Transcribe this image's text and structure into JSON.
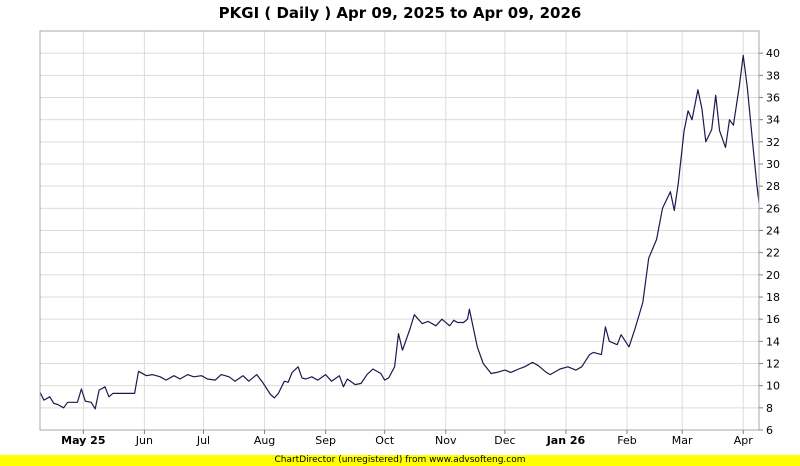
{
  "chart_data": {
    "type": "line",
    "title": "PKGI ( Daily ) Apr 09, 2025 to Apr 09, 2026",
    "xlabel": "",
    "ylabel": "",
    "x_range": [
      "2025-04-09",
      "2026-04-09"
    ],
    "ylim": [
      6,
      42
    ],
    "y_ticks": [
      6,
      8,
      10,
      12,
      14,
      16,
      18,
      20,
      22,
      24,
      26,
      28,
      30,
      32,
      34,
      36,
      38,
      40
    ],
    "y_axis_side": "right",
    "grid": true,
    "x_ticks": [
      {
        "label": "May 25",
        "date": "2025-05-01",
        "bold": true
      },
      {
        "label": "Jun",
        "date": "2025-06-01",
        "bold": false
      },
      {
        "label": "Jul",
        "date": "2025-07-01",
        "bold": false
      },
      {
        "label": "Aug",
        "date": "2025-08-01",
        "bold": false
      },
      {
        "label": "Sep",
        "date": "2025-09-01",
        "bold": false
      },
      {
        "label": "Oct",
        "date": "2025-10-01",
        "bold": false
      },
      {
        "label": "Nov",
        "date": "2025-11-01",
        "bold": false
      },
      {
        "label": "Dec",
        "date": "2025-12-01",
        "bold": false
      },
      {
        "label": "Jan 26",
        "date": "2026-01-01",
        "bold": true
      },
      {
        "label": "Feb",
        "date": "2026-02-01",
        "bold": false
      },
      {
        "label": "Mar",
        "date": "2026-03-01",
        "bold": false
      },
      {
        "label": "Apr",
        "date": "2026-04-01",
        "bold": false
      }
    ],
    "series": [
      {
        "line_color": "#1a1a4e",
        "points": [
          [
            "2025-04-09",
            9.4
          ],
          [
            "2025-04-11",
            8.7
          ],
          [
            "2025-04-14",
            9.0
          ],
          [
            "2025-04-16",
            8.4
          ],
          [
            "2025-04-18",
            8.3
          ],
          [
            "2025-04-21",
            8.0
          ],
          [
            "2025-04-23",
            8.5
          ],
          [
            "2025-04-25",
            8.5
          ],
          [
            "2025-04-28",
            8.5
          ],
          [
            "2025-04-30",
            9.7
          ],
          [
            "2025-05-02",
            8.6
          ],
          [
            "2025-05-05",
            8.5
          ],
          [
            "2025-05-07",
            7.9
          ],
          [
            "2025-05-09",
            9.6
          ],
          [
            "2025-05-12",
            9.9
          ],
          [
            "2025-05-14",
            9.0
          ],
          [
            "2025-05-16",
            9.3
          ],
          [
            "2025-05-20",
            9.3
          ],
          [
            "2025-05-23",
            9.3
          ],
          [
            "2025-05-27",
            9.3
          ],
          [
            "2025-05-29",
            11.3
          ],
          [
            "2025-06-02",
            10.9
          ],
          [
            "2025-06-05",
            11.0
          ],
          [
            "2025-06-09",
            10.8
          ],
          [
            "2025-06-12",
            10.5
          ],
          [
            "2025-06-16",
            10.9
          ],
          [
            "2025-06-19",
            10.6
          ],
          [
            "2025-06-23",
            11.0
          ],
          [
            "2025-06-26",
            10.8
          ],
          [
            "2025-06-30",
            10.9
          ],
          [
            "2025-07-03",
            10.6
          ],
          [
            "2025-07-07",
            10.5
          ],
          [
            "2025-07-10",
            11.0
          ],
          [
            "2025-07-14",
            10.8
          ],
          [
            "2025-07-17",
            10.4
          ],
          [
            "2025-07-21",
            10.9
          ],
          [
            "2025-07-24",
            10.4
          ],
          [
            "2025-07-28",
            11.0
          ],
          [
            "2025-07-31",
            10.3
          ],
          [
            "2025-08-04",
            9.2
          ],
          [
            "2025-08-06",
            8.9
          ],
          [
            "2025-08-08",
            9.3
          ],
          [
            "2025-08-11",
            10.4
          ],
          [
            "2025-08-13",
            10.3
          ],
          [
            "2025-08-15",
            11.2
          ],
          [
            "2025-08-18",
            11.7
          ],
          [
            "2025-08-20",
            10.7
          ],
          [
            "2025-08-22",
            10.6
          ],
          [
            "2025-08-25",
            10.8
          ],
          [
            "2025-08-28",
            10.5
          ],
          [
            "2025-09-01",
            11.0
          ],
          [
            "2025-09-04",
            10.4
          ],
          [
            "2025-09-08",
            10.9
          ],
          [
            "2025-09-10",
            9.9
          ],
          [
            "2025-09-12",
            10.6
          ],
          [
            "2025-09-16",
            10.1
          ],
          [
            "2025-09-19",
            10.2
          ],
          [
            "2025-09-22",
            11.0
          ],
          [
            "2025-09-25",
            11.5
          ],
          [
            "2025-09-29",
            11.1
          ],
          [
            "2025-10-01",
            10.5
          ],
          [
            "2025-10-03",
            10.7
          ],
          [
            "2025-10-06",
            11.7
          ],
          [
            "2025-10-08",
            14.7
          ],
          [
            "2025-10-10",
            13.2
          ],
          [
            "2025-10-14",
            15.2
          ],
          [
            "2025-10-16",
            16.4
          ],
          [
            "2025-10-20",
            15.6
          ],
          [
            "2025-10-23",
            15.8
          ],
          [
            "2025-10-27",
            15.4
          ],
          [
            "2025-10-30",
            16.0
          ],
          [
            "2025-11-03",
            15.4
          ],
          [
            "2025-11-05",
            15.9
          ],
          [
            "2025-11-07",
            15.7
          ],
          [
            "2025-11-10",
            15.7
          ],
          [
            "2025-11-12",
            16.0
          ],
          [
            "2025-11-13",
            16.9
          ],
          [
            "2025-11-17",
            13.5
          ],
          [
            "2025-11-20",
            12.0
          ],
          [
            "2025-11-24",
            11.1
          ],
          [
            "2025-11-27",
            11.2
          ],
          [
            "2025-12-01",
            11.4
          ],
          [
            "2025-12-04",
            11.2
          ],
          [
            "2025-12-08",
            11.5
          ],
          [
            "2025-12-11",
            11.7
          ],
          [
            "2025-12-15",
            12.1
          ],
          [
            "2025-12-18",
            11.8
          ],
          [
            "2025-12-22",
            11.2
          ],
          [
            "2025-12-24",
            11.0
          ],
          [
            "2025-12-29",
            11.5
          ],
          [
            "2026-01-02",
            11.7
          ],
          [
            "2026-01-06",
            11.4
          ],
          [
            "2026-01-09",
            11.7
          ],
          [
            "2026-01-13",
            12.8
          ],
          [
            "2026-01-15",
            13.0
          ],
          [
            "2026-01-19",
            12.8
          ],
          [
            "2026-01-21",
            15.3
          ],
          [
            "2026-01-23",
            14.0
          ],
          [
            "2026-01-27",
            13.7
          ],
          [
            "2026-01-29",
            14.6
          ],
          [
            "2026-02-02",
            13.5
          ],
          [
            "2026-02-05",
            15.1
          ],
          [
            "2026-02-09",
            17.5
          ],
          [
            "2026-02-12",
            21.5
          ],
          [
            "2026-02-16",
            23.2
          ],
          [
            "2026-02-19",
            26.0
          ],
          [
            "2026-02-23",
            27.5
          ],
          [
            "2026-02-25",
            25.8
          ],
          [
            "2026-02-27",
            28.2
          ],
          [
            "2026-03-02",
            33.0
          ],
          [
            "2026-03-04",
            34.8
          ],
          [
            "2026-03-06",
            34.0
          ],
          [
            "2026-03-09",
            36.7
          ],
          [
            "2026-03-11",
            35.0
          ],
          [
            "2026-03-13",
            32.0
          ],
          [
            "2026-03-16",
            33.1
          ],
          [
            "2026-03-18",
            36.2
          ],
          [
            "2026-03-20",
            33.0
          ],
          [
            "2026-03-23",
            31.5
          ],
          [
            "2026-03-25",
            34.0
          ],
          [
            "2026-03-27",
            33.5
          ],
          [
            "2026-03-30",
            37.0
          ],
          [
            "2026-04-01",
            39.8
          ],
          [
            "2026-04-03",
            37.0
          ],
          [
            "2026-04-06",
            31.5
          ],
          [
            "2026-04-08",
            28.0
          ],
          [
            "2026-04-09",
            26.5
          ]
        ]
      }
    ]
  },
  "footer": {
    "text": "ChartDirector (unregistered) from www.advsofteng.com",
    "background": "#ffff00"
  }
}
